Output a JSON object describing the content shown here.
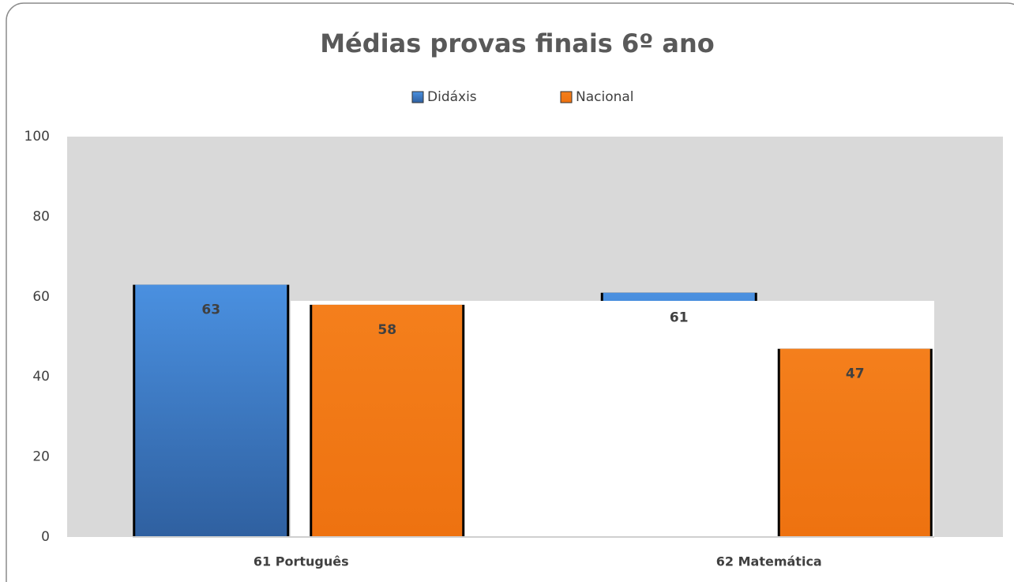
{
  "chart_data": {
    "type": "bar",
    "title": "Médias provas finais 6º ano",
    "categories": [
      "61 Português",
      "62 Matemática"
    ],
    "series": [
      {
        "name": "Didáxis",
        "color": "#3f7fcf",
        "values": [
          63,
          61
        ]
      },
      {
        "name": "Nacional",
        "color": "#f07818",
        "values": [
          58,
          47
        ]
      }
    ],
    "ylim": [
      0,
      100
    ],
    "yticks": [
      0,
      20,
      40,
      60,
      80,
      100
    ],
    "grid": false,
    "legend": "top"
  }
}
